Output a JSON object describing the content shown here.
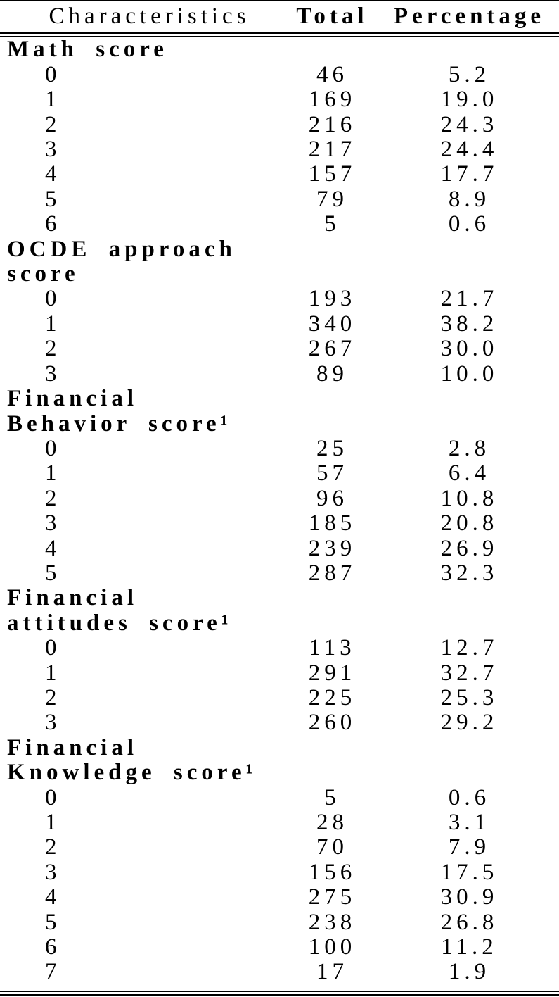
{
  "page": {
    "background_color": "#ffffff",
    "text_color": "#000000",
    "columns": [
      {
        "label": "Characteristics"
      },
      {
        "label": "Total"
      },
      {
        "label": "Percentage"
      }
    ],
    "sections": [
      {
        "label_lines": [
          "Math score"
        ],
        "rows": [
          {
            "score": "0",
            "total": "46",
            "percentage": "5.2"
          },
          {
            "score": "1",
            "total": "169",
            "percentage": "19.0"
          },
          {
            "score": "2",
            "total": "216",
            "percentage": "24.3"
          },
          {
            "score": "3",
            "total": "217",
            "percentage": "24.4"
          },
          {
            "score": "4",
            "total": "157",
            "percentage": "17.7"
          },
          {
            "score": "5",
            "total": "79",
            "percentage": "8.9"
          },
          {
            "score": "6",
            "total": "5",
            "percentage": "0.6"
          }
        ]
      },
      {
        "label_lines": [
          "OCDE approach",
          "score"
        ],
        "rows": [
          {
            "score": "0",
            "total": "193",
            "percentage": "21.7"
          },
          {
            "score": "1",
            "total": "340",
            "percentage": "38.2"
          },
          {
            "score": "2",
            "total": "267",
            "percentage": "30.0"
          },
          {
            "score": "3",
            "total": "89",
            "percentage": "10.0"
          }
        ]
      },
      {
        "label_lines": [
          "Financial",
          "Behavior score¹"
        ],
        "rows": [
          {
            "score": "0",
            "total": "25",
            "percentage": "2.8"
          },
          {
            "score": "1",
            "total": "57",
            "percentage": "6.4"
          },
          {
            "score": "2",
            "total": "96",
            "percentage": "10.8"
          },
          {
            "score": "3",
            "total": "185",
            "percentage": "20.8"
          },
          {
            "score": "4",
            "total": "239",
            "percentage": "26.9"
          },
          {
            "score": "5",
            "total": "287",
            "percentage": "32.3"
          }
        ]
      },
      {
        "label_lines": [
          "Financial",
          "attitudes score¹"
        ],
        "rows": [
          {
            "score": "0",
            "total": "113",
            "percentage": "12.7"
          },
          {
            "score": "1",
            "total": "291",
            "percentage": "32.7"
          },
          {
            "score": "2",
            "total": "225",
            "percentage": "25.3"
          },
          {
            "score": "3",
            "total": "260",
            "percentage": "29.2"
          }
        ]
      },
      {
        "label_lines": [
          "Financial",
          "Knowledge score¹"
        ],
        "rows": [
          {
            "score": "0",
            "total": "5",
            "percentage": "0.6"
          },
          {
            "score": "1",
            "total": "28",
            "percentage": "3.1"
          },
          {
            "score": "2",
            "total": "70",
            "percentage": "7.9"
          },
          {
            "score": "3",
            "total": "156",
            "percentage": "17.5"
          },
          {
            "score": "4",
            "total": "275",
            "percentage": "30.9"
          },
          {
            "score": "5",
            "total": "238",
            "percentage": "26.8"
          },
          {
            "score": "6",
            "total": "100",
            "percentage": "11.2"
          },
          {
            "score": "7",
            "total": "17",
            "percentage": "1.9"
          }
        ]
      }
    ]
  }
}
